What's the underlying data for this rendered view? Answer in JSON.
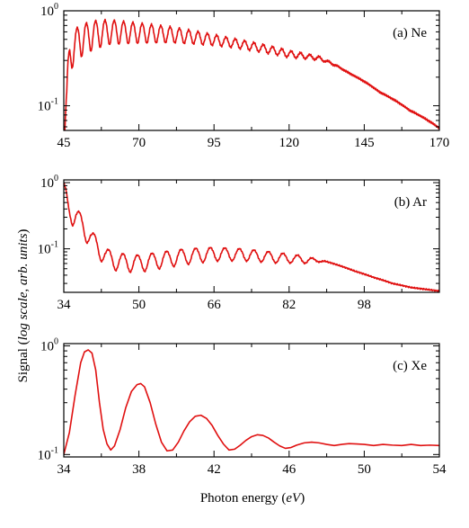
{
  "chart_data": [
    {
      "type": "line",
      "panel_label": "(a)  Ne",
      "color": "#e01010",
      "x_ticks": [
        45,
        70,
        95,
        120,
        145,
        170
      ],
      "xlim": [
        45,
        170
      ],
      "y_ticks": [
        {
          "base": "10",
          "exp": "0",
          "value": 1
        },
        {
          "base": "10",
          "exp": "-1",
          "value": 0.1
        }
      ],
      "yscale": "log",
      "ylim": [
        0.055,
        1.0
      ],
      "envelope_x": [
        45,
        46,
        47,
        50,
        55,
        60,
        70,
        80,
        90,
        100,
        110,
        120,
        130,
        140,
        150,
        160,
        170
      ],
      "envelope_y": [
        0.05,
        0.15,
        0.5,
        0.7,
        0.78,
        0.8,
        0.74,
        0.68,
        0.6,
        0.52,
        0.45,
        0.38,
        0.33,
        0.22,
        0.14,
        0.09,
        0.058
      ],
      "mod_depth_x": [
        45,
        50,
        60,
        80,
        100,
        120,
        130,
        135,
        140,
        170
      ],
      "mod_depth": [
        0.55,
        0.55,
        0.45,
        0.32,
        0.2,
        0.15,
        0.08,
        0.03,
        0.0,
        0.0
      ],
      "period_eV": 3.1,
      "phase_x0": 46.3
    },
    {
      "type": "line",
      "panel_label": "(b)  Ar",
      "color": "#e01010",
      "x_ticks": [
        34,
        50,
        66,
        82,
        98
      ],
      "xlim": [
        34,
        114
      ],
      "y_ticks": [
        {
          "base": "10",
          "exp": "0",
          "value": 1
        },
        {
          "base": "10",
          "exp": "-1",
          "value": 0.1
        }
      ],
      "yscale": "log",
      "ylim": [
        0.022,
        1.1
      ],
      "envelope_x": [
        34,
        35,
        37,
        40,
        43,
        46,
        50,
        55,
        60,
        66,
        72,
        78,
        84,
        88,
        92,
        96,
        100,
        104,
        108,
        114
      ],
      "envelope_y": [
        1.0,
        0.55,
        0.38,
        0.18,
        0.1,
        0.085,
        0.08,
        0.09,
        0.1,
        0.105,
        0.1,
        0.09,
        0.08,
        0.07,
        0.058,
        0.046,
        0.037,
        0.03,
        0.026,
        0.023
      ],
      "mod_depth_x": [
        34,
        36,
        40,
        50,
        60,
        70,
        80,
        86,
        90,
        114
      ],
      "mod_depth": [
        0.3,
        0.55,
        0.5,
        0.45,
        0.42,
        0.35,
        0.3,
        0.2,
        0.0,
        0.0
      ],
      "period_eV": 3.1,
      "phase_x0": 34.2
    },
    {
      "type": "line",
      "panel_label": "(c)  Xe",
      "color": "#e01010",
      "x_ticks": [
        34,
        38,
        42,
        46,
        50,
        54
      ],
      "xlim": [
        34,
        54
      ],
      "y_ticks": [
        {
          "base": "10",
          "exp": "0",
          "value": 1
        },
        {
          "base": "10",
          "exp": "-1",
          "value": 0.1
        }
      ],
      "yscale": "log",
      "ylim": [
        0.095,
        1.05
      ],
      "x": [
        34.0,
        34.3,
        34.6,
        34.9,
        35.1,
        35.3,
        35.5,
        35.7,
        35.9,
        36.1,
        36.3,
        36.5,
        36.7,
        37.0,
        37.3,
        37.6,
        37.9,
        38.1,
        38.3,
        38.6,
        38.9,
        39.2,
        39.5,
        39.8,
        40.1,
        40.4,
        40.7,
        41.0,
        41.3,
        41.6,
        41.9,
        42.2,
        42.5,
        42.8,
        43.1,
        43.4,
        43.7,
        44.0,
        44.3,
        44.6,
        44.9,
        45.2,
        45.5,
        45.8,
        46.1,
        46.4,
        46.8,
        47.2,
        47.6,
        48.0,
        48.4,
        48.8,
        49.2,
        49.6,
        50.0,
        50.5,
        51.0,
        51.5,
        52.0,
        52.5,
        53.0,
        53.5,
        54.0
      ],
      "y": [
        0.1,
        0.16,
        0.35,
        0.7,
        0.88,
        0.92,
        0.86,
        0.6,
        0.3,
        0.17,
        0.125,
        0.11,
        0.12,
        0.17,
        0.27,
        0.38,
        0.44,
        0.45,
        0.42,
        0.3,
        0.19,
        0.13,
        0.108,
        0.11,
        0.13,
        0.165,
        0.2,
        0.225,
        0.23,
        0.215,
        0.185,
        0.15,
        0.125,
        0.11,
        0.112,
        0.122,
        0.135,
        0.146,
        0.152,
        0.15,
        0.142,
        0.13,
        0.12,
        0.114,
        0.116,
        0.122,
        0.128,
        0.13,
        0.128,
        0.124,
        0.121,
        0.124,
        0.126,
        0.125,
        0.124,
        0.121,
        0.124,
        0.122,
        0.121,
        0.124,
        0.121,
        0.122,
        0.121
      ]
    }
  ],
  "ylabel_parts": {
    "pre": "Signal (",
    "italic": "log scale, arb. units",
    "post": ")"
  },
  "xlabel_parts": {
    "pre": "Photon energy (",
    "italic": "eV",
    "post": ")"
  }
}
